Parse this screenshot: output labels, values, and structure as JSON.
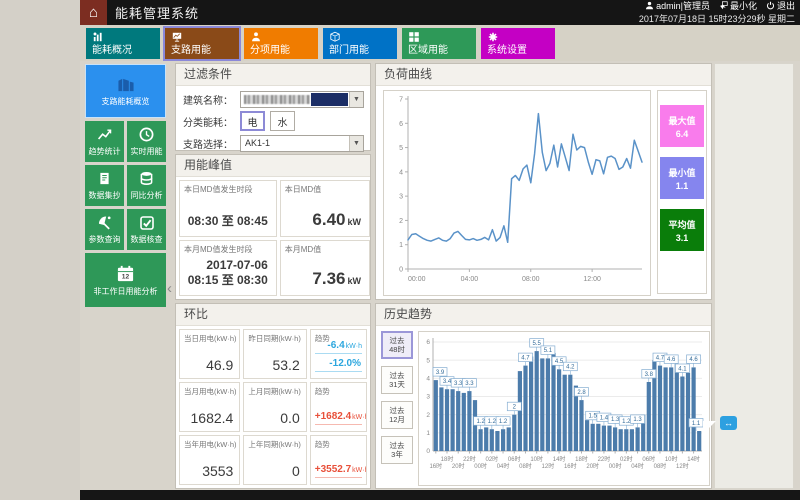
{
  "titlebar": {
    "app_title": "能耗管理系统",
    "user": "admin|管理员",
    "minimize": "最小化",
    "logout": "退出",
    "datetime": "2017年07月18日 15时23分29秒 星期二"
  },
  "nav": {
    "items": [
      {
        "key": "overview",
        "label": "能耗概况",
        "color": "#00797d",
        "icon": "chartbar"
      },
      {
        "key": "branch",
        "label": "支路用能",
        "color": "#8a4a18",
        "icon": "presentation",
        "selected": true
      },
      {
        "key": "subentry",
        "label": "分项用能",
        "color": "#f07c00",
        "icon": "person"
      },
      {
        "key": "department",
        "label": "部门用能",
        "color": "#0072c6",
        "icon": "cube"
      },
      {
        "key": "area",
        "label": "区域用能",
        "color": "#2e9958",
        "icon": "grid"
      },
      {
        "key": "settings",
        "label": "系统设置",
        "color": "#c400c4",
        "icon": "gear"
      }
    ]
  },
  "sidebar": {
    "items": [
      {
        "key": "branch-overview",
        "label": "支路能耗概览",
        "icon": "building",
        "wide": true,
        "selected": true
      },
      {
        "key": "trend-stats",
        "label": "趋势统计",
        "icon": "trend"
      },
      {
        "key": "realtime-energy",
        "label": "实时用能",
        "icon": "clock"
      },
      {
        "key": "data-reading",
        "label": "数据集抄",
        "icon": "document"
      },
      {
        "key": "yoy-analysis",
        "label": "同比分析",
        "icon": "database"
      },
      {
        "key": "parameter-query",
        "label": "参数查询",
        "icon": "dish"
      },
      {
        "key": "data-check",
        "label": "数据核查",
        "icon": "check"
      },
      {
        "key": "nonworkday-analysis",
        "label": "非工作日用能分析",
        "icon": "calendar",
        "wide": true
      }
    ]
  },
  "filter": {
    "title": "过滤条件",
    "building_label": "建筑名称：",
    "category_label": "分类能耗：",
    "category_options": [
      "电",
      "水"
    ],
    "branch_label": "支路选择：",
    "branch_value": "AK1-1"
  },
  "peak": {
    "title": "用能峰值",
    "cells": [
      {
        "key": "today-md-period",
        "label": "本日MD值发生时段",
        "lines": [
          "08:30 至 08:45"
        ]
      },
      {
        "key": "today-md-value",
        "label": "本日MD值",
        "value": "6.40",
        "unit": "kW"
      },
      {
        "key": "month-md-period",
        "label": "本月MD值发生时段",
        "lines": [
          "2017-07-06",
          "08:15 至 08:30"
        ]
      },
      {
        "key": "month-md-value",
        "label": "本月MD值",
        "value": "7.36",
        "unit": "kW"
      }
    ]
  },
  "comparison": {
    "title": "环比",
    "trend_label": "趋势",
    "rows": [
      {
        "metric": {
          "label": "当日用电(kW·h)",
          "value": "46.9"
        },
        "previous": {
          "label": "昨日同期(kW·h)",
          "value": "53.2"
        },
        "trends": [
          {
            "text": "-6.4",
            "unit": "kW·h"
          },
          {
            "text": "-12.0%",
            "unit": ""
          }
        ],
        "trend_color": "#2ba6de"
      },
      {
        "metric": {
          "label": "当月用电(kW·h)",
          "value": "1682.4"
        },
        "previous": {
          "label": "上月同期(kW·h)",
          "value": "0.0"
        },
        "trends": [
          {
            "text": "+1682.4",
            "unit": "kW·h"
          }
        ],
        "trend_color": "#e8503a"
      },
      {
        "metric": {
          "label": "当年用电(kW·h)",
          "value": "3553"
        },
        "previous": {
          "label": "上年同期(kW·h)",
          "value": "0"
        },
        "trends": [
          {
            "text": "+3552.7",
            "unit": "kW·h"
          }
        ],
        "trend_color": "#e8503a"
      }
    ]
  },
  "load_curve": {
    "title": "负荷曲线",
    "stat_cards": [
      {
        "key": "max",
        "label": "最大值",
        "value": "6.4",
        "color": "#f97cec"
      },
      {
        "key": "min",
        "label": "最小值",
        "value": "1.1",
        "color": "#8585ee"
      },
      {
        "key": "avg",
        "label": "平均值",
        "value": "3.1",
        "color": "#0a7d0a"
      }
    ]
  },
  "history": {
    "title": "历史趋势",
    "range_buttons": [
      {
        "key": "48h",
        "lines": [
          "过去",
          "48时"
        ],
        "selected": true
      },
      {
        "key": "31d",
        "lines": [
          "过去",
          "31天"
        ]
      },
      {
        "key": "12m",
        "lines": [
          "过去",
          "12月"
        ]
      },
      {
        "key": "3y",
        "lines": [
          "过去",
          "3年"
        ]
      }
    ]
  },
  "chart_data": [
    {
      "type": "line",
      "title": "负荷曲线",
      "ylabel": "kW",
      "ylim": [
        0,
        7
      ],
      "y_ticks": [
        0,
        1,
        2,
        3,
        4,
        5,
        6,
        7
      ],
      "x_ticks": [
        "00:00",
        "04:00",
        "08:00",
        "12:00"
      ],
      "x_hours_span": 15.25,
      "x_start_minutes": 0,
      "x_step_minutes": 15,
      "line_color": "#5a92c8",
      "values": [
        1.2,
        1.42,
        1.45,
        1.35,
        1.25,
        1.18,
        1.15,
        1.22,
        1.28,
        1.18,
        1.15,
        1.25,
        1.48,
        1.55,
        1.38,
        1.22,
        1.2,
        1.25,
        1.18,
        1.22,
        1.3,
        1.2,
        1.62,
        1.15,
        1.3,
        1.78,
        1.1,
        3.72,
        3.85,
        3.65,
        4.12,
        4.28,
        3.55,
        4.75,
        6.4,
        4.8,
        4.05,
        4.35,
        5.1,
        4.2,
        5.15,
        4.6,
        4.05,
        5.55,
        4.9,
        5.05,
        5.0,
        4.4,
        3.9,
        4.5,
        4.45,
        3.92,
        4.6,
        4.65,
        4.55,
        4.1,
        4.2,
        4.55,
        4.15,
        5.3,
        4.85,
        4.4
      ],
      "stats": {
        "max": 6.4,
        "min": 1.1,
        "avg": 3.1
      }
    },
    {
      "type": "bar",
      "title": "历史趋势（过去48时）",
      "ylim": [
        0,
        6
      ],
      "y_ticks": [
        0,
        1,
        2,
        3,
        4,
        5,
        6
      ],
      "bar_color": "#4c7cab",
      "label_box_color": "#85aed2",
      "label_text_color": "#336b99",
      "categories": [
        "16时",
        "17时",
        "18时",
        "19时",
        "20时",
        "21时",
        "22时",
        "23时",
        "00时",
        "01时",
        "02时",
        "03时",
        "04时",
        "05时",
        "06时",
        "07时",
        "08时",
        "09时",
        "10时",
        "11时",
        "12时",
        "13时",
        "14时",
        "15时",
        "16时",
        "17时",
        "18时",
        "19时",
        "20时",
        "21时",
        "22时",
        "23时",
        "00时",
        "01时",
        "02时",
        "03时",
        "04时",
        "05时",
        "06时",
        "07时",
        "08时",
        "09时",
        "10时",
        "11时",
        "12时",
        "13时",
        "14时",
        "15时"
      ],
      "values": [
        3.9,
        3.5,
        3.4,
        3.4,
        3.3,
        3.2,
        3.3,
        2.8,
        1.2,
        1.3,
        1.2,
        1.1,
        1.2,
        1.3,
        2,
        4.4,
        4.7,
        5.2,
        5.5,
        5.1,
        5.1,
        5.4,
        4.5,
        4.2,
        4.2,
        3.6,
        2.8,
        1.7,
        1.5,
        1.5,
        1.4,
        1.4,
        1.3,
        1.2,
        1.2,
        1.2,
        1.3,
        2,
        3.8,
        5,
        4.7,
        4.6,
        4.6,
        4.8,
        4.1,
        4.3,
        4.6,
        1.1
      ]
    }
  ]
}
